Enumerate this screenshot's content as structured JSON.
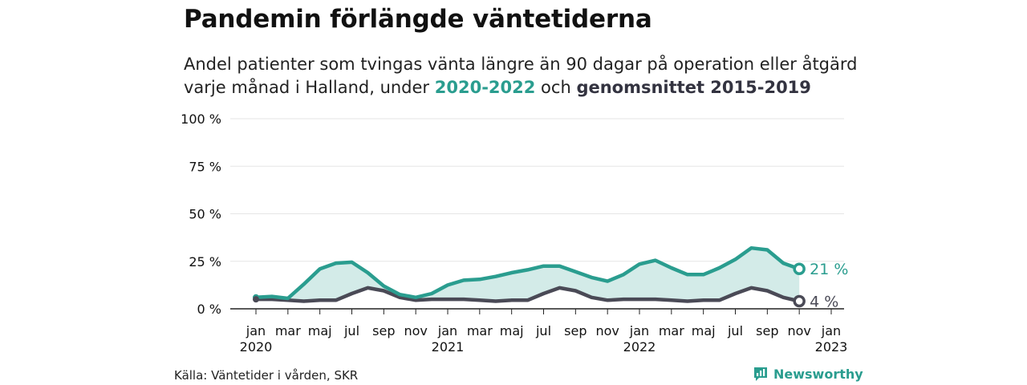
{
  "title": "Pandemin förlängde väntetiderna",
  "subtitle": {
    "line1": "Andel patienter som tvingas vänta längre än 90 dagar på operation eller åtgärd",
    "line2_prefix": "varje månad i Halland, under ",
    "series_a_label": "2020-2022",
    "line2_mid": " och ",
    "series_b_label": "genomsnittet 2015-2019"
  },
  "source": "Källa: Väntetider i vården, SKR",
  "brand": {
    "name": "Newsworthy",
    "icon": "newsworthy-logo-icon"
  },
  "colors": {
    "series_a": "#2a9d8f",
    "series_a_fill": "#d3ebe8",
    "series_b": "#4a4a56",
    "grid": "#e6e6e6",
    "axis": "#222222"
  },
  "chart_data": {
    "type": "area",
    "ylim": [
      0,
      100
    ],
    "y_ticks": [
      0,
      25,
      50,
      75,
      100
    ],
    "y_tick_labels": [
      "0 %",
      "25 %",
      "50 %",
      "75 %",
      "100 %"
    ],
    "x_ticks": [
      {
        "index": 0,
        "label": "jan",
        "year": "2020"
      },
      {
        "index": 2,
        "label": "mar",
        "year": ""
      },
      {
        "index": 4,
        "label": "maj",
        "year": ""
      },
      {
        "index": 6,
        "label": "jul",
        "year": ""
      },
      {
        "index": 8,
        "label": "sep",
        "year": ""
      },
      {
        "index": 10,
        "label": "nov",
        "year": ""
      },
      {
        "index": 12,
        "label": "jan",
        "year": "2021"
      },
      {
        "index": 14,
        "label": "mar",
        "year": ""
      },
      {
        "index": 16,
        "label": "maj",
        "year": ""
      },
      {
        "index": 18,
        "label": "jul",
        "year": ""
      },
      {
        "index": 20,
        "label": "sep",
        "year": ""
      },
      {
        "index": 22,
        "label": "nov",
        "year": ""
      },
      {
        "index": 24,
        "label": "jan",
        "year": "2022"
      },
      {
        "index": 26,
        "label": "mar",
        "year": ""
      },
      {
        "index": 28,
        "label": "maj",
        "year": ""
      },
      {
        "index": 30,
        "label": "jul",
        "year": ""
      },
      {
        "index": 32,
        "label": "sep",
        "year": ""
      },
      {
        "index": 34,
        "label": "nov",
        "year": ""
      },
      {
        "index": 36,
        "label": "jan",
        "year": "2023"
      }
    ],
    "series": [
      {
        "name": "2020-2022",
        "values": [
          6,
          6.5,
          5.5,
          13,
          21,
          24,
          24.5,
          19,
          12,
          7.5,
          6,
          8,
          12.5,
          15,
          15.5,
          17,
          19,
          20.5,
          22.5,
          22.5,
          19.5,
          16.5,
          14.5,
          18,
          23.5,
          25.5,
          21.5,
          18,
          18,
          21.5,
          26,
          32,
          31,
          24,
          21
        ],
        "end_label": "21 %"
      },
      {
        "name": "genomsnittet 2015-2019",
        "values": [
          5,
          5,
          4.5,
          4,
          4.5,
          4.5,
          8,
          11,
          9.5,
          6,
          4.5,
          5,
          5,
          5,
          4.5,
          4,
          4.5,
          4.5,
          8,
          11,
          9.5,
          6,
          4.5,
          5,
          5,
          5,
          4.5,
          4,
          4.5,
          4.5,
          8,
          11,
          9.5,
          6,
          4
        ],
        "end_label": "4 %"
      }
    ]
  }
}
